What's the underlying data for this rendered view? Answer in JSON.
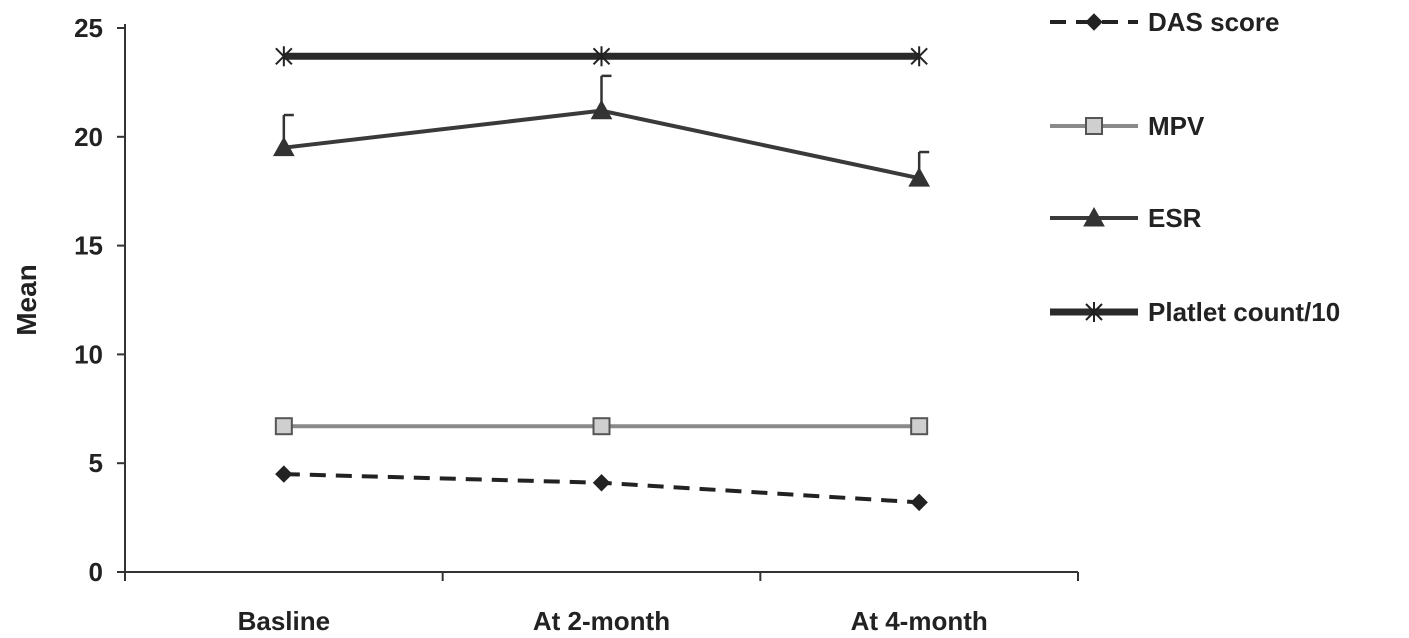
{
  "chart_data": {
    "type": "line",
    "title": "",
    "xlabel": "",
    "ylabel": "Mean",
    "categories": [
      "Basline",
      "At 2-month",
      "At 4-month"
    ],
    "ylim": [
      0,
      25
    ],
    "yticks": [
      0,
      5,
      10,
      15,
      20,
      25
    ],
    "grid": false,
    "legend_position": "right",
    "series": [
      {
        "name": "DAS score",
        "values": [
          4.5,
          4.1,
          3.2
        ],
        "color": "#222222",
        "line": "dashed",
        "marker": "diamond"
      },
      {
        "name": "MPV",
        "values": [
          6.7,
          6.7,
          6.7
        ],
        "color": "#8a8a8a",
        "line": "solid",
        "marker": "square"
      },
      {
        "name": "ESR",
        "values": [
          19.5,
          21.2,
          18.1
        ],
        "error_upper": [
          1.5,
          1.6,
          1.2
        ],
        "color": "#3a3a3a",
        "line": "solid",
        "marker": "triangle"
      },
      {
        "name": "Platlet count/10",
        "values": [
          23.7,
          23.7,
          23.7
        ],
        "color": "#2a2a2a",
        "line": "solid",
        "marker": "asterisk"
      }
    ]
  }
}
